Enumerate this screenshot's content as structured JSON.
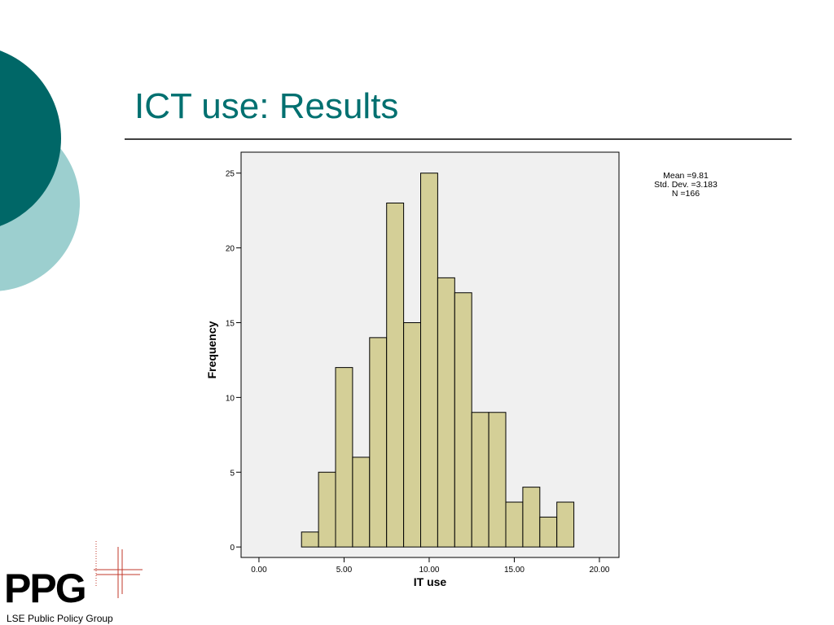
{
  "slide": {
    "title": "ICT use: Results",
    "logo": "PPG",
    "caption": "LSE Public Policy Group"
  },
  "chart_data": {
    "type": "histogram",
    "bins": [
      2.5,
      3.5,
      4.5,
      5.5,
      6.5,
      7.5,
      8.5,
      9.5,
      10.5,
      11.5,
      12.5,
      13.5,
      14.5,
      15.5,
      16.5,
      17.5,
      18.5
    ],
    "values": [
      1,
      5,
      12,
      6,
      14,
      23,
      15,
      25,
      18,
      17,
      9,
      9,
      3,
      4,
      2,
      3
    ],
    "color": "#d4cf97",
    "xlim": [
      -1.05,
      21.15
    ],
    "xticks": [
      {
        "value": 0,
        "label": "0.00"
      },
      {
        "value": 5,
        "label": "5.00"
      },
      {
        "value": 10,
        "label": "10.00"
      },
      {
        "value": 15,
        "label": "15.00"
      },
      {
        "value": 20,
        "label": "20.00"
      }
    ],
    "ylim": [
      -0.7,
      26.4
    ],
    "yticks": [
      0,
      5,
      10,
      15,
      20,
      25
    ],
    "xlabel": "IT use",
    "ylabel": "Frequency",
    "annotations": [
      "Mean =9.81",
      "Std. Dev. =3.183",
      "N =166"
    ]
  }
}
